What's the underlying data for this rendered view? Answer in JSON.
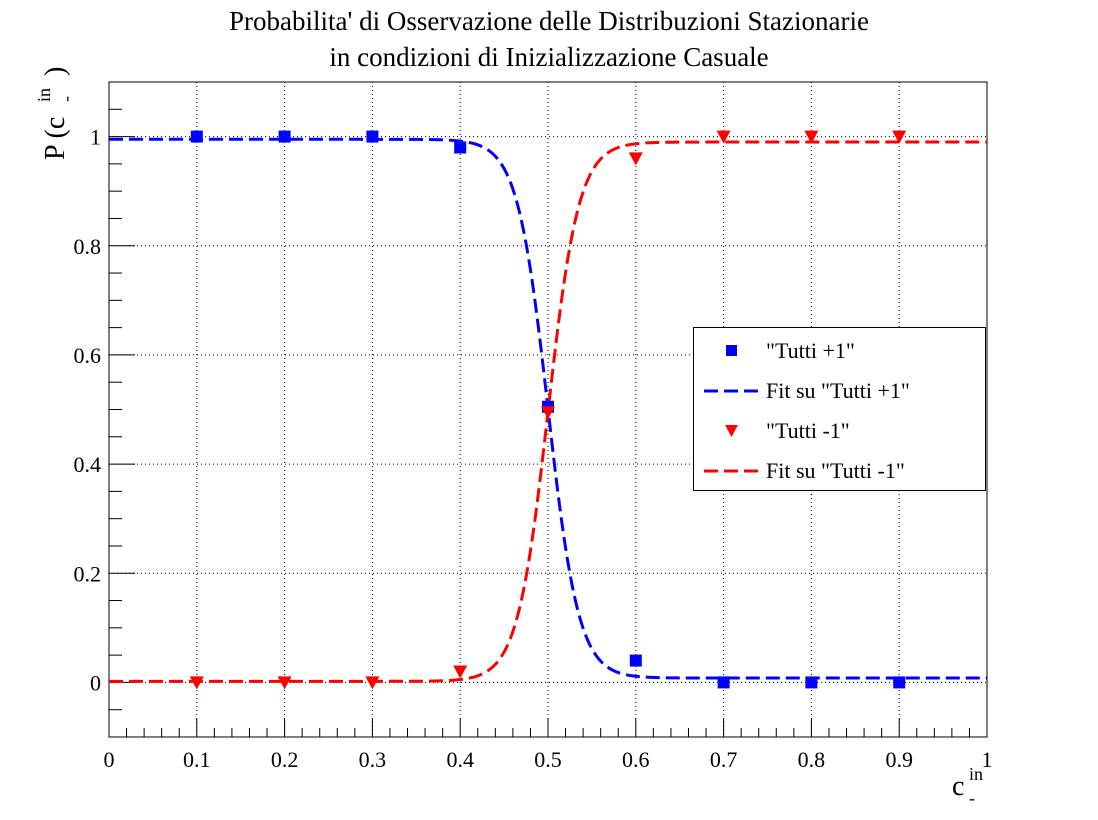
{
  "chart_data": {
    "type": "scatter",
    "title_lines": [
      "Probabilita' di Osservazione delle Distribuzioni Stazionarie",
      "in condizioni di Inizializzazione Casuale"
    ],
    "xlabel": {
      "base": "c",
      "sup": "in",
      "sub": "-"
    },
    "ylabel": {
      "prefix": "P (",
      "base": "c",
      "sup": "in",
      "sub": "-",
      "suffix": ")"
    },
    "xlim": [
      0,
      1
    ],
    "ylim": [
      -0.1,
      1.1
    ],
    "x_ticks": [
      0,
      0.1,
      0.2,
      0.3,
      0.4,
      0.5,
      0.6,
      0.7,
      0.8,
      0.9,
      1
    ],
    "x_tick_labels": [
      "0",
      "0.1",
      "0.2",
      "0.3",
      "0.4",
      "0.5",
      "0.6",
      "0.7",
      "0.8",
      "0.9",
      "1"
    ],
    "y_ticks": [
      0,
      0.2,
      0.4,
      0.6,
      0.8,
      1
    ],
    "y_tick_labels": [
      "0",
      "0.2",
      "0.4",
      "0.6",
      "0.8",
      "1"
    ],
    "grid": true,
    "legend_position": "center-right",
    "series": [
      {
        "name": "\"Tutti +1\"",
        "kind": "points",
        "marker": "square",
        "color": "#0000ff",
        "x": [
          0.1,
          0.2,
          0.3,
          0.4,
          0.5,
          0.6,
          0.7,
          0.8,
          0.9
        ],
        "y": [
          1.0,
          1.0,
          1.0,
          0.98,
          0.505,
          0.04,
          0.0,
          0.0,
          0.0
        ]
      },
      {
        "name": "Fit su \"Tutti +1\"",
        "kind": "fit",
        "color": "#0000ff",
        "fit": {
          "direction": "decreasing",
          "lower": 0.008,
          "upper": 0.995,
          "center": 0.5,
          "width": 0.0175
        },
        "xrange": [
          0,
          1
        ]
      },
      {
        "name": "\"Tutti -1\"",
        "kind": "points",
        "marker": "triangle-down",
        "color": "#ff0000",
        "x": [
          0.1,
          0.2,
          0.3,
          0.4,
          0.5,
          0.6,
          0.7,
          0.8,
          0.9
        ],
        "y": [
          0.0,
          0.0,
          0.0,
          0.02,
          0.495,
          0.96,
          1.0,
          1.0,
          1.0
        ]
      },
      {
        "name": "Fit su \"Tutti -1\"",
        "kind": "fit",
        "color": "#ff0000",
        "fit": {
          "direction": "increasing",
          "lower": 0.002,
          "upper": 0.99,
          "center": 0.5,
          "width": 0.0175
        },
        "xrange": [
          0,
          1
        ]
      }
    ]
  }
}
